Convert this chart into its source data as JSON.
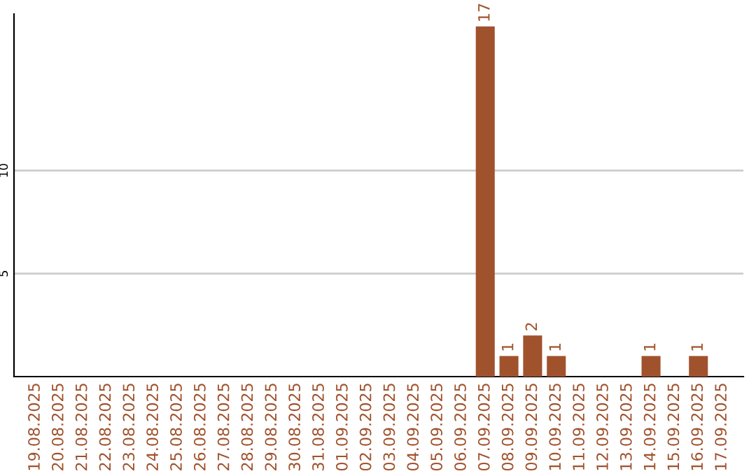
{
  "chart_data": {
    "type": "bar",
    "categories": [
      "19.08.2025",
      "20.08.2025",
      "21.08.2025",
      "22.08.2025",
      "23.08.2025",
      "24.08.2025",
      "25.08.2025",
      "26.08.2025",
      "27.08.2025",
      "28.08.2025",
      "29.08.2025",
      "30.08.2025",
      "31.08.2025",
      "01.09.2025",
      "02.09.2025",
      "03.09.2025",
      "04.09.2025",
      "05.09.2025",
      "06.09.2025",
      "07.09.2025",
      "08.09.2025",
      "09.09.2025",
      "10.09.2025",
      "11.09.2025",
      "12.09.2025",
      "13.09.2025",
      "14.09.2025",
      "15.09.2025",
      "16.09.2025",
      "17.09.2025"
    ],
    "values": [
      0,
      0,
      0,
      0,
      0,
      0,
      0,
      0,
      0,
      0,
      0,
      0,
      0,
      0,
      0,
      0,
      0,
      0,
      0,
      17,
      1,
      2,
      1,
      0,
      0,
      0,
      1,
      0,
      1,
      0
    ],
    "value_labels": [
      null,
      null,
      null,
      null,
      null,
      null,
      null,
      null,
      null,
      null,
      null,
      null,
      null,
      null,
      null,
      null,
      null,
      null,
      null,
      "17",
      "1",
      "2",
      "1",
      null,
      null,
      null,
      "1",
      null,
      "1",
      null
    ],
    "color": "#a0522d",
    "ylim": [
      0,
      17.6
    ],
    "yticks": [
      5,
      10
    ],
    "grid": "y",
    "legend": false
  }
}
